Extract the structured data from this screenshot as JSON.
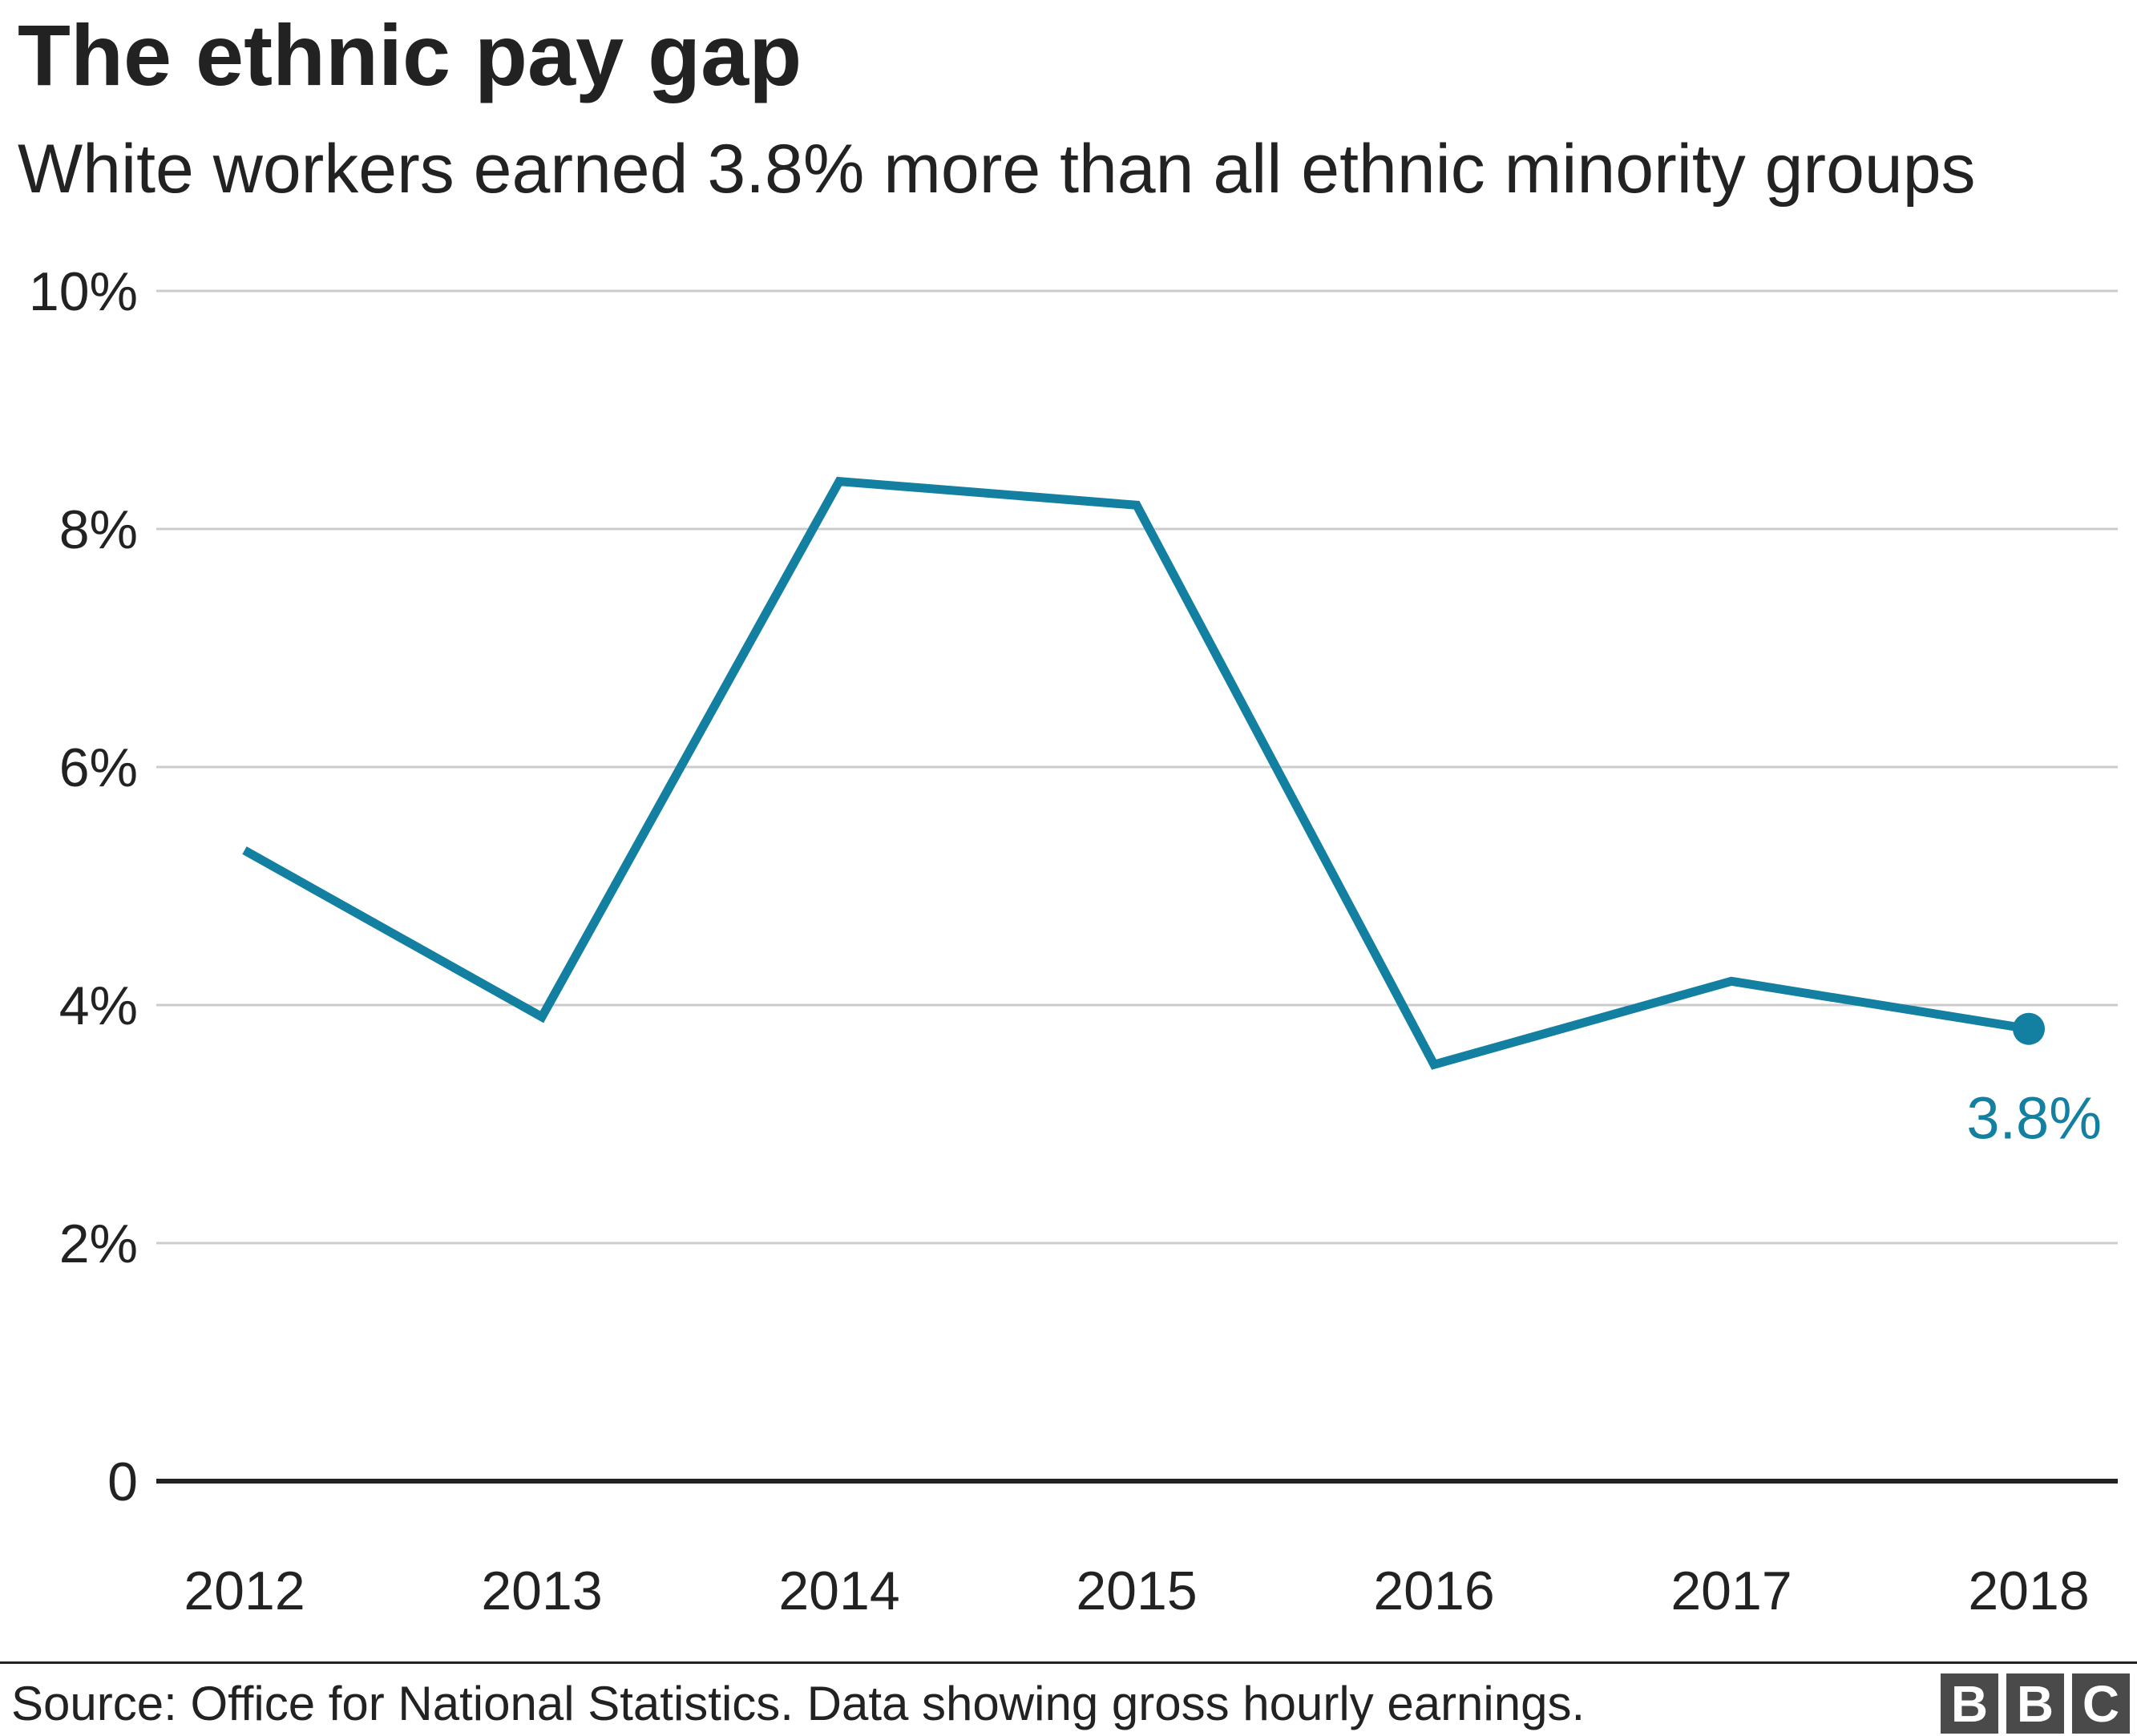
{
  "title": "The ethnic pay gap",
  "subtitle": "White workers earned 3.8% more than all ethnic minority groups",
  "footer": {
    "source": "Source: Office for National Statistics. Data showing gross hourly earnings.",
    "logo_letters": [
      "B",
      "B",
      "C"
    ]
  },
  "colors": {
    "series": "#1380a1",
    "grid": "#cccccc",
    "axis": "#222222",
    "text": "#222222",
    "logo": "#4a4a4a"
  },
  "chart_data": {
    "type": "line",
    "title": "The ethnic pay gap",
    "subtitle": "White workers earned 3.8% more than all ethnic minority groups",
    "xlabel": "",
    "ylabel": "",
    "x": [
      "2012",
      "2013",
      "2014",
      "2015",
      "2016",
      "2017",
      "2018"
    ],
    "series": [
      {
        "name": "Ethnic pay gap",
        "values": [
          5.3,
          3.9,
          8.4,
          8.2,
          3.5,
          4.2,
          3.8
        ]
      }
    ],
    "ylim": [
      0,
      10
    ],
    "yticks": [
      0,
      2,
      4,
      6,
      8,
      10
    ],
    "ytick_labels": [
      "0",
      "2%",
      "4%",
      "6%",
      "8%",
      "10%"
    ],
    "grid": true,
    "legend": "none",
    "end_marker_label": "3.8%"
  }
}
